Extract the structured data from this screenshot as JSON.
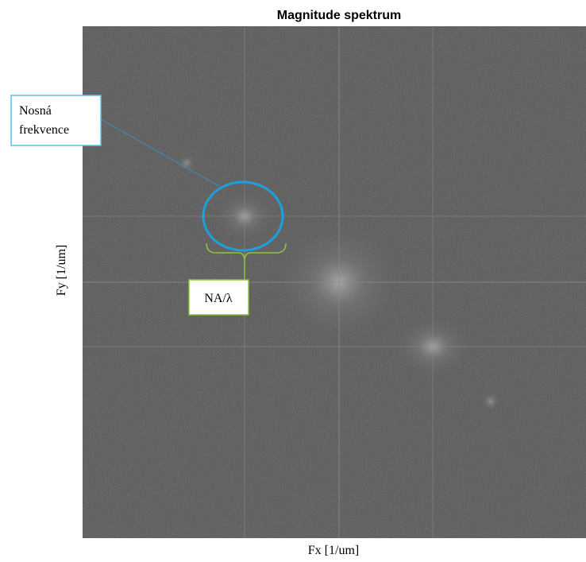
{
  "figure": {
    "title": "Magnitude spektrum",
    "x_label": "Fx [1/um]",
    "y_label": "Fy [1/um]",
    "annotations": {
      "carrier_frequency": [
        "Nosná",
        "frekvence"
      ],
      "aperture": "NA/λ"
    }
  }
}
